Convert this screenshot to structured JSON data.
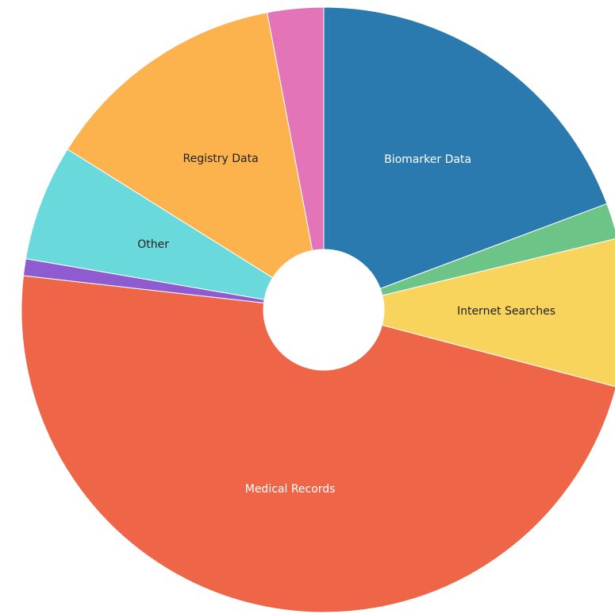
{
  "chart_data": {
    "type": "pie",
    "donut": true,
    "categories": [
      "Biomarker Data",
      null,
      "Internet Searches",
      "Medical Records",
      null,
      "Other",
      "Registry Data",
      null
    ],
    "values": [
      19.3,
      1.9,
      7.9,
      47.7,
      0.9,
      6.2,
      13.1,
      3.0
    ],
    "colors": [
      "#2a7ab0",
      "#6cc487",
      "#f8d45c",
      "#ee6547",
      "#8e5bd1",
      "#6ad9db",
      "#fdb34d",
      "#e374b8"
    ]
  }
}
